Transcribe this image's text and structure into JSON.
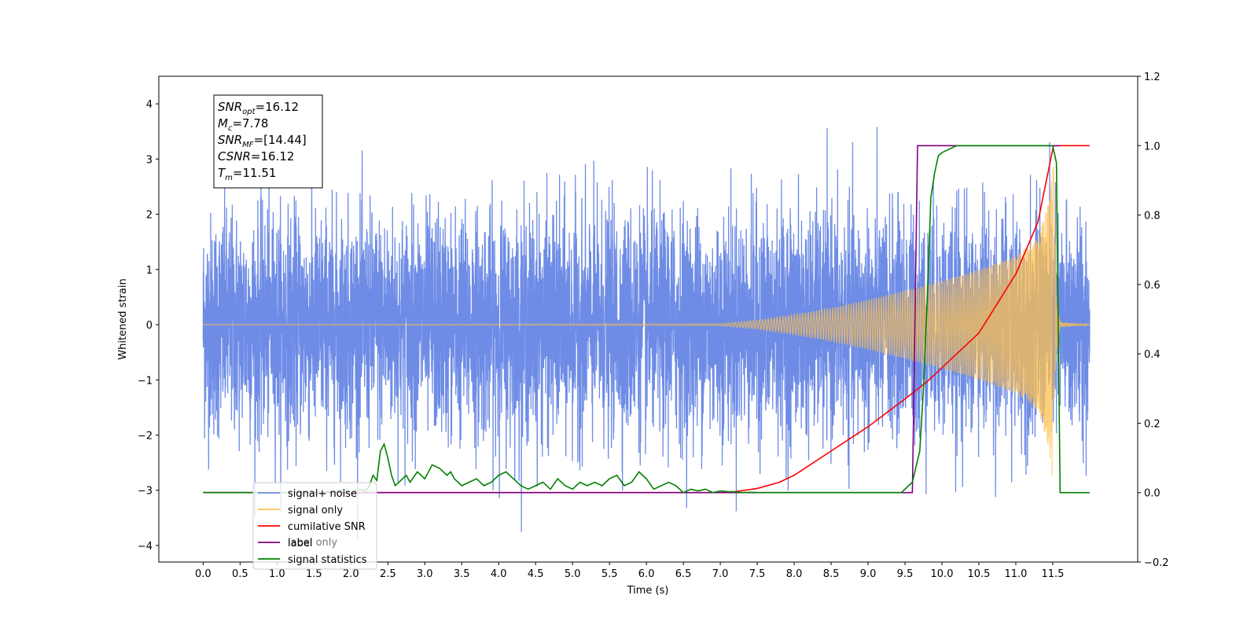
{
  "chart_data": {
    "type": "line",
    "xlabel": "Time (s)",
    "ylabel": "Whitened strain",
    "xlim": [
      -0.6,
      12.65
    ],
    "ylim": [
      -4.3,
      4.5
    ],
    "y2lim": [
      -0.2,
      1.2
    ],
    "x_ticks": [
      "0.0",
      "0.5",
      "1.0",
      "1.5",
      "2.0",
      "2.5",
      "3.0",
      "3.5",
      "4.0",
      "4.5",
      "5.0",
      "5.5",
      "6.0",
      "6.5",
      "7.0",
      "7.5",
      "8.0",
      "8.5",
      "9.0",
      "9.5",
      "10.0",
      "10.5",
      "11.0",
      "11.5"
    ],
    "y_ticks": [
      "4",
      "3",
      "2",
      "1",
      "0",
      "−1",
      "−2",
      "−3",
      "−4"
    ],
    "y2_ticks": [
      "1.2",
      "1.0",
      "0.8",
      "0.6",
      "0.4",
      "0.2",
      "0.0",
      "−0.2"
    ],
    "grid": false,
    "legend_position": "lower-left",
    "legend": [
      {
        "label": "signal+ noise",
        "color": "#6e8ce6"
      },
      {
        "label": "signal only",
        "color": "#ffc04d"
      },
      {
        "label": "cumilative SNR",
        "color": "#ff0000"
      },
      {
        "label": "label",
        "color": "#800080"
      },
      {
        "label": "signal statistics",
        "color": "#008000"
      }
    ],
    "hidden_legend_text": "label only",
    "annotation": [
      {
        "main": "SNR",
        "sub": "opt",
        "value": "=16.12"
      },
      {
        "main": "M",
        "sub": "c",
        "value": "=7.78"
      },
      {
        "main": "SNR",
        "sub": "MF",
        "value": "=[14.44]"
      },
      {
        "main": "CSNR",
        "sub": "",
        "value": "=16.12"
      },
      {
        "main": "T",
        "sub": "m",
        "value": "=11.51"
      }
    ],
    "series": [
      {
        "name": "signal+ noise",
        "axis": "left",
        "color": "#6e8ce6",
        "description": "white noise, std approx 1, spanning t = 0 to 12.0 s",
        "x_range": [
          0.0,
          12.0
        ],
        "noise_std": 1.0
      },
      {
        "name": "signal only",
        "axis": "left",
        "color": "#ffc04d",
        "description": "chirp waveform, amplitude grows until merger",
        "envelope": {
          "t": [
            0.0,
            7.0,
            7.5,
            8.0,
            8.5,
            9.0,
            9.5,
            10.0,
            10.5,
            11.0,
            11.3,
            11.45,
            11.51,
            11.55,
            11.6,
            12.0
          ],
          "amp": [
            0.0,
            0.02,
            0.08,
            0.18,
            0.3,
            0.45,
            0.62,
            0.8,
            1.0,
            1.25,
            1.55,
            2.3,
            3.0,
            0.5,
            0.05,
            0.0
          ]
        }
      },
      {
        "name": "cumilative SNR",
        "axis": "right",
        "color": "#ff0000",
        "x": [
          0.0,
          7.0,
          7.2,
          7.5,
          7.8,
          8.0,
          8.5,
          9.0,
          9.5,
          9.8,
          10.0,
          10.5,
          11.0,
          11.3,
          11.51,
          11.55,
          12.0
        ],
        "y": [
          0.0,
          0.0,
          0.003,
          0.012,
          0.03,
          0.05,
          0.12,
          0.19,
          0.27,
          0.32,
          0.36,
          0.46,
          0.63,
          0.78,
          1.0,
          1.0,
          1.0
        ]
      },
      {
        "name": "label",
        "axis": "right",
        "color": "#800080",
        "x": [
          0.0,
          9.6,
          9.67,
          11.6
        ],
        "y": [
          0.0,
          0.0,
          1.0,
          1.0
        ]
      },
      {
        "name": "signal statistics",
        "axis": "right",
        "color": "#008000",
        "x": [
          0.0,
          1.65,
          1.7,
          1.8,
          1.9,
          2.0,
          2.1,
          2.2,
          2.25,
          2.3,
          2.35,
          2.4,
          2.45,
          2.5,
          2.55,
          2.6,
          2.7,
          2.75,
          2.8,
          2.9,
          3.0,
          3.1,
          3.2,
          3.3,
          3.35,
          3.4,
          3.5,
          3.6,
          3.7,
          3.8,
          3.9,
          4.0,
          4.1,
          4.2,
          4.3,
          4.4,
          4.5,
          4.6,
          4.7,
          4.8,
          4.9,
          5.0,
          5.1,
          5.2,
          5.3,
          5.4,
          5.5,
          5.6,
          5.7,
          5.8,
          5.9,
          6.0,
          6.1,
          6.2,
          6.3,
          6.4,
          6.5,
          6.6,
          6.7,
          6.8,
          6.9,
          7.0,
          7.1,
          7.2,
          7.3,
          7.4,
          7.5,
          7.7,
          7.9,
          8.2,
          9.0,
          9.45,
          9.6,
          9.7,
          9.75,
          9.8,
          9.85,
          9.9,
          9.95,
          10.0,
          10.1,
          10.2,
          10.3,
          11.0,
          11.5,
          11.55,
          11.6,
          12.0
        ],
        "y": [
          0.0,
          0.0,
          0.003,
          0.005,
          0.008,
          0.0,
          0.01,
          0.005,
          0.02,
          0.05,
          0.035,
          0.12,
          0.14,
          0.1,
          0.05,
          0.02,
          0.04,
          0.05,
          0.03,
          0.06,
          0.04,
          0.08,
          0.07,
          0.05,
          0.06,
          0.04,
          0.02,
          0.03,
          0.04,
          0.02,
          0.03,
          0.05,
          0.06,
          0.04,
          0.02,
          0.01,
          0.02,
          0.03,
          0.01,
          0.04,
          0.02,
          0.01,
          0.03,
          0.02,
          0.03,
          0.02,
          0.04,
          0.05,
          0.02,
          0.03,
          0.06,
          0.04,
          0.01,
          0.02,
          0.03,
          0.02,
          0.0,
          0.01,
          0.005,
          0.01,
          0.0,
          0.005,
          0.003,
          0.002,
          0.0,
          0.001,
          0.0,
          0.0,
          0.0,
          0.0,
          0.0,
          0.0,
          0.03,
          0.12,
          0.3,
          0.55,
          0.85,
          0.92,
          0.97,
          0.98,
          0.99,
          1.0,
          1.0,
          1.0,
          1.0,
          0.95,
          0.0,
          0.0
        ]
      }
    ]
  }
}
